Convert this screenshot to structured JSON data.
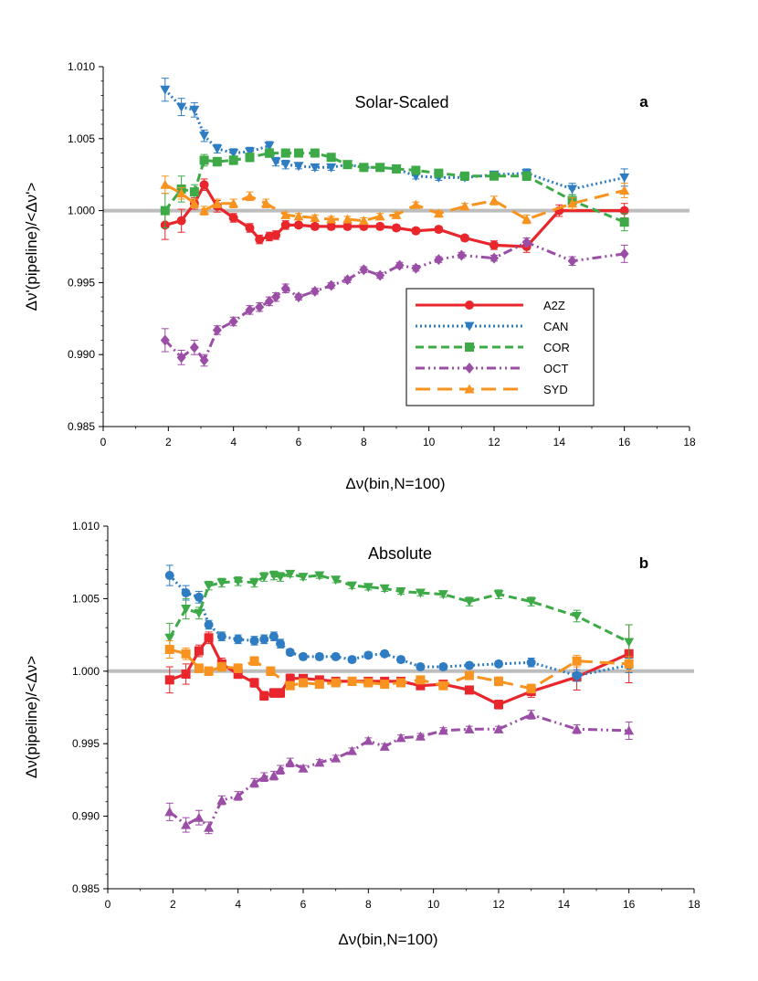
{
  "chart_data": [
    {
      "type": "line",
      "title": "Solar-Scaled",
      "panel_label": "a",
      "xlabel": "Δν(bin,N=100)",
      "ylabel": "Δν'(pipeline)/<Δν'>",
      "xlim": [
        0,
        18
      ],
      "ylim": [
        0.985,
        1.01
      ],
      "xticks": [
        0,
        2,
        4,
        6,
        8,
        10,
        12,
        14,
        16,
        18
      ],
      "yticks": [
        0.985,
        0.99,
        0.995,
        1.0,
        1.005,
        1.01
      ],
      "ytick_labels": [
        "0.985",
        "0.990",
        "0.995",
        "1.000",
        "1.005",
        "1.010"
      ],
      "reference_line": 1.0,
      "legend": {
        "position": "lower-right",
        "entries": [
          "A2Z",
          "CAN",
          "COR",
          "OCT",
          "SYD"
        ]
      },
      "series": [
        {
          "name": "A2Z",
          "color": "#e8262c",
          "marker": "circle",
          "dash": "solid",
          "x": [
            1.9,
            2.4,
            2.8,
            3.1,
            3.5,
            4.0,
            4.5,
            4.8,
            5.1,
            5.3,
            5.6,
            6.0,
            6.5,
            7.0,
            7.5,
            8.0,
            8.5,
            9.0,
            9.6,
            10.3,
            11.1,
            12.0,
            13.0,
            14.0,
            16.0
          ],
          "y": [
            0.999,
            0.9993,
            1.0005,
            1.0018,
            1.0003,
            0.9995,
            0.9988,
            0.998,
            0.9982,
            0.9983,
            0.999,
            0.999,
            0.9989,
            0.9989,
            0.9989,
            0.9989,
            0.9989,
            0.9988,
            0.9986,
            0.9987,
            0.9981,
            0.9976,
            0.9975,
            1.0,
            1.0
          ],
          "err": [
            0.001,
            0.0008,
            0.0004,
            0.0004,
            0.0004,
            0.0003,
            0.0003,
            0.0003,
            0.0003,
            0.0003,
            0.0003,
            0.0002,
            0.0002,
            0.0002,
            0.0002,
            0.0002,
            0.0002,
            0.0002,
            0.0002,
            0.0002,
            0.0002,
            0.0003,
            0.0004,
            0.0004,
            0.0005
          ]
        },
        {
          "name": "CAN",
          "color": "#2e7dc2",
          "marker": "triangle-down",
          "dash": "dotted",
          "x": [
            1.9,
            2.4,
            2.8,
            3.1,
            3.5,
            4.0,
            4.5,
            5.1,
            5.3,
            5.6,
            6.0,
            6.5,
            7.0,
            7.5,
            8.0,
            8.5,
            9.0,
            9.6,
            10.3,
            11.1,
            12.0,
            13.0,
            14.4,
            16.0
          ],
          "y": [
            1.0084,
            1.0072,
            1.007,
            1.0052,
            1.0043,
            1.004,
            1.0041,
            1.0045,
            1.0034,
            1.0032,
            1.0031,
            1.003,
            1.003,
            1.0032,
            1.003,
            1.003,
            1.0029,
            1.0024,
            1.0023,
            1.0023,
            1.0025,
            1.0026,
            1.0015,
            1.0023
          ],
          "err": [
            0.0008,
            0.0006,
            0.0005,
            0.0004,
            0.0003,
            0.0003,
            0.0003,
            0.0003,
            0.0003,
            0.0003,
            0.0002,
            0.0002,
            0.0002,
            0.0002,
            0.0002,
            0.0002,
            0.0002,
            0.0002,
            0.0002,
            0.0002,
            0.0002,
            0.0003,
            0.0004,
            0.0006
          ]
        },
        {
          "name": "COR",
          "color": "#3daa47",
          "marker": "square",
          "dash": "dashed",
          "x": [
            1.9,
            2.4,
            2.8,
            3.1,
            3.5,
            4.0,
            4.5,
            5.1,
            5.6,
            6.0,
            6.5,
            7.0,
            7.5,
            8.0,
            8.5,
            9.0,
            9.6,
            10.3,
            11.1,
            12.0,
            13.0,
            14.4,
            16.0
          ],
          "y": [
            1.0,
            1.0015,
            1.0013,
            1.0035,
            1.0034,
            1.0035,
            1.0037,
            1.004,
            1.004,
            1.004,
            1.004,
            1.0037,
            1.0032,
            1.003,
            1.003,
            1.0029,
            1.0028,
            1.0026,
            1.0024,
            1.0024,
            1.0024,
            1.0007,
            0.9992
          ],
          "err": [
            0.0012,
            0.0009,
            0.0005,
            0.0004,
            0.0003,
            0.0003,
            0.0003,
            0.0003,
            0.0002,
            0.0002,
            0.0002,
            0.0002,
            0.0002,
            0.0002,
            0.0002,
            0.0002,
            0.0002,
            0.0002,
            0.0002,
            0.0002,
            0.0003,
            0.0004,
            0.0006
          ]
        },
        {
          "name": "OCT",
          "color": "#9b4ea5",
          "marker": "diamond",
          "dash": "dash-dot-dot",
          "x": [
            1.9,
            2.4,
            2.8,
            3.1,
            3.5,
            4.0,
            4.5,
            4.8,
            5.1,
            5.3,
            5.6,
            6.0,
            6.5,
            7.0,
            7.5,
            8.0,
            8.5,
            9.1,
            9.6,
            10.3,
            11.0,
            12.0,
            13.0,
            14.4,
            16.0
          ],
          "y": [
            0.991,
            0.9898,
            0.9905,
            0.9896,
            0.9917,
            0.9923,
            0.9931,
            0.9933,
            0.9937,
            0.994,
            0.9946,
            0.994,
            0.9944,
            0.9948,
            0.9952,
            0.9959,
            0.9955,
            0.9962,
            0.996,
            0.9966,
            0.9969,
            0.9967,
            0.9978,
            0.9965,
            0.997
          ],
          "err": [
            0.0008,
            0.0005,
            0.0005,
            0.0004,
            0.0003,
            0.0003,
            0.0003,
            0.0003,
            0.0003,
            0.0003,
            0.0003,
            0.0002,
            0.0002,
            0.0002,
            0.0002,
            0.0002,
            0.0002,
            0.0002,
            0.0002,
            0.0002,
            0.0002,
            0.0002,
            0.0003,
            0.0003,
            0.0006
          ]
        },
        {
          "name": "SYD",
          "color": "#f7931e",
          "marker": "triangle-up",
          "dash": "long-dash",
          "x": [
            1.9,
            2.4,
            2.8,
            3.1,
            3.5,
            4.0,
            4.5,
            5.0,
            5.6,
            6.0,
            6.5,
            7.0,
            7.5,
            8.0,
            8.5,
            9.0,
            9.6,
            10.3,
            11.1,
            12.0,
            13.0,
            14.4,
            16.0
          ],
          "y": [
            1.0018,
            1.0012,
            1.0005,
            1.0,
            1.0005,
            1.0005,
            1.001,
            1.0005,
            0.9997,
            0.9996,
            0.9995,
            0.9994,
            0.9994,
            0.9993,
            0.9996,
            0.9997,
            1.0004,
            0.9998,
            1.0003,
            1.0007,
            0.9994,
            1.0005,
            1.0014
          ],
          "err": [
            0.0006,
            0.0004,
            0.0003,
            0.0003,
            0.0003,
            0.0003,
            0.0003,
            0.0003,
            0.0002,
            0.0002,
            0.0002,
            0.0002,
            0.0002,
            0.0002,
            0.0002,
            0.0002,
            0.0002,
            0.0002,
            0.0002,
            0.0003,
            0.0003,
            0.0004,
            0.0005
          ]
        }
      ]
    },
    {
      "type": "line",
      "title": "Absolute",
      "panel_label": "b",
      "xlabel": "Δν(bin,N=100)",
      "ylabel": "Δν(pipeline)/<Δν>",
      "xlim": [
        0,
        18
      ],
      "ylim": [
        0.985,
        1.01
      ],
      "xticks": [
        0,
        2,
        4,
        6,
        8,
        10,
        12,
        14,
        16,
        18
      ],
      "yticks": [
        0.985,
        0.99,
        0.995,
        1.0,
        1.005,
        1.01
      ],
      "ytick_labels": [
        "0.985",
        "0.990",
        "0.995",
        "1.000",
        "1.005",
        "1.010"
      ],
      "reference_line": 1.0,
      "legend": null,
      "series": [
        {
          "name": "A2Z",
          "color": "#e8262c",
          "marker": "square",
          "dash": "solid",
          "x": [
            1.9,
            2.4,
            2.8,
            3.1,
            3.5,
            4.0,
            4.5,
            4.8,
            5.1,
            5.3,
            5.6,
            6.0,
            6.5,
            7.0,
            7.5,
            8.0,
            8.5,
            9.0,
            9.6,
            10.3,
            11.1,
            12.0,
            13.0,
            14.4,
            16.0
          ],
          "y": [
            0.9994,
            0.9998,
            1.0014,
            1.0023,
            1.0005,
            0.9998,
            0.9992,
            0.9983,
            0.9985,
            0.9985,
            0.9995,
            0.9995,
            0.9994,
            0.9993,
            0.9993,
            0.9993,
            0.9993,
            0.9993,
            0.999,
            0.9991,
            0.9987,
            0.9977,
            0.9986,
            0.9996,
            1.0012
          ],
          "err": [
            0.0009,
            0.0007,
            0.0004,
            0.0004,
            0.0004,
            0.0003,
            0.0003,
            0.0003,
            0.0003,
            0.0003,
            0.0003,
            0.0002,
            0.0002,
            0.0002,
            0.0002,
            0.0002,
            0.0002,
            0.0002,
            0.0002,
            0.0002,
            0.0002,
            0.0003,
            0.0004,
            0.0009,
            0.002
          ]
        },
        {
          "name": "CAN",
          "color": "#2e7dc2",
          "marker": "circle",
          "dash": "dotted",
          "x": [
            1.9,
            2.4,
            2.8,
            3.1,
            3.5,
            4.0,
            4.5,
            4.8,
            5.1,
            5.3,
            5.6,
            6.0,
            6.5,
            7.0,
            7.5,
            8.0,
            8.5,
            9.0,
            9.6,
            10.3,
            11.1,
            12.0,
            13.0,
            14.4,
            16.0
          ],
          "y": [
            1.0066,
            1.0054,
            1.0051,
            1.0032,
            1.0024,
            1.0022,
            1.0021,
            1.0022,
            1.0024,
            1.0019,
            1.0013,
            1.001,
            1.001,
            1.001,
            1.0008,
            1.0011,
            1.0012,
            1.0008,
            1.0003,
            1.0003,
            1.0004,
            1.0005,
            1.0006,
            0.9997,
            1.0004
          ],
          "err": [
            0.0007,
            0.0005,
            0.0004,
            0.0003,
            0.0003,
            0.0003,
            0.0003,
            0.0003,
            0.0003,
            0.0003,
            0.0002,
            0.0002,
            0.0002,
            0.0002,
            0.0002,
            0.0002,
            0.0002,
            0.0002,
            0.0002,
            0.0002,
            0.0002,
            0.0002,
            0.0003,
            0.0004,
            0.0005
          ]
        },
        {
          "name": "COR",
          "color": "#3daa47",
          "marker": "triangle-down",
          "dash": "dashed",
          "x": [
            1.9,
            2.4,
            2.8,
            3.1,
            3.5,
            4.0,
            4.5,
            4.8,
            5.1,
            5.3,
            5.6,
            6.0,
            6.5,
            7.0,
            7.5,
            8.0,
            8.5,
            9.0,
            9.6,
            10.3,
            11.1,
            12.0,
            13.0,
            14.4,
            16.0
          ],
          "y": [
            1.0023,
            1.0043,
            1.004,
            1.0059,
            1.0061,
            1.0062,
            1.0061,
            1.0065,
            1.0066,
            1.0065,
            1.0067,
            1.0065,
            1.0066,
            1.0063,
            1.0059,
            1.0058,
            1.0057,
            1.0055,
            1.0054,
            1.0053,
            1.0048,
            1.0053,
            1.0048,
            1.0038,
            1.002
          ],
          "err": [
            0.001,
            0.0007,
            0.0004,
            0.0003,
            0.0003,
            0.0003,
            0.0003,
            0.0003,
            0.0003,
            0.0003,
            0.0002,
            0.0002,
            0.0002,
            0.0002,
            0.0002,
            0.0002,
            0.0002,
            0.0002,
            0.0002,
            0.0002,
            0.0003,
            0.0003,
            0.0003,
            0.0004,
            0.0012
          ]
        },
        {
          "name": "OCT",
          "color": "#9b4ea5",
          "marker": "triangle-up",
          "dash": "dash-dot-dot",
          "x": [
            1.9,
            2.4,
            2.8,
            3.1,
            3.5,
            4.0,
            4.5,
            4.8,
            5.1,
            5.3,
            5.6,
            6.0,
            6.5,
            7.0,
            7.5,
            8.0,
            8.5,
            9.0,
            9.6,
            10.3,
            11.1,
            12.0,
            13.0,
            14.4,
            16.0
          ],
          "y": [
            0.9903,
            0.9894,
            0.9899,
            0.9892,
            0.9911,
            0.9914,
            0.9923,
            0.9927,
            0.9928,
            0.9932,
            0.9937,
            0.9933,
            0.9937,
            0.994,
            0.9945,
            0.9952,
            0.9948,
            0.9954,
            0.9955,
            0.9959,
            0.996,
            0.996,
            0.997,
            0.996,
            0.9959
          ],
          "err": [
            0.0006,
            0.0005,
            0.0005,
            0.0004,
            0.0003,
            0.0003,
            0.0003,
            0.0003,
            0.0003,
            0.0003,
            0.0003,
            0.0002,
            0.0002,
            0.0002,
            0.0002,
            0.0002,
            0.0002,
            0.0002,
            0.0002,
            0.0002,
            0.0002,
            0.0002,
            0.0003,
            0.0003,
            0.0006
          ]
        },
        {
          "name": "SYD",
          "color": "#f7931e",
          "marker": "square",
          "dash": "long-dash",
          "x": [
            1.9,
            2.4,
            2.8,
            3.1,
            3.5,
            4.0,
            4.5,
            5.0,
            5.6,
            6.0,
            6.5,
            7.0,
            7.5,
            8.0,
            8.5,
            9.0,
            9.6,
            10.3,
            11.1,
            12.0,
            13.0,
            14.4,
            16.0
          ],
          "y": [
            1.0015,
            1.0012,
            1.0002,
            1.0,
            1.0003,
            1.0002,
            1.0007,
            1.0,
            0.999,
            0.9992,
            0.9991,
            0.9992,
            0.9993,
            0.9992,
            0.9991,
            0.9992,
            0.9994,
            0.999,
            0.9997,
            0.9993,
            0.9988,
            1.0007,
            1.0005
          ],
          "err": [
            0.0006,
            0.0004,
            0.0003,
            0.0003,
            0.0003,
            0.0003,
            0.0003,
            0.0003,
            0.0002,
            0.0002,
            0.0002,
            0.0002,
            0.0002,
            0.0002,
            0.0002,
            0.0002,
            0.0002,
            0.0002,
            0.0002,
            0.0003,
            0.0003,
            0.0004,
            0.0005
          ]
        }
      ]
    }
  ]
}
